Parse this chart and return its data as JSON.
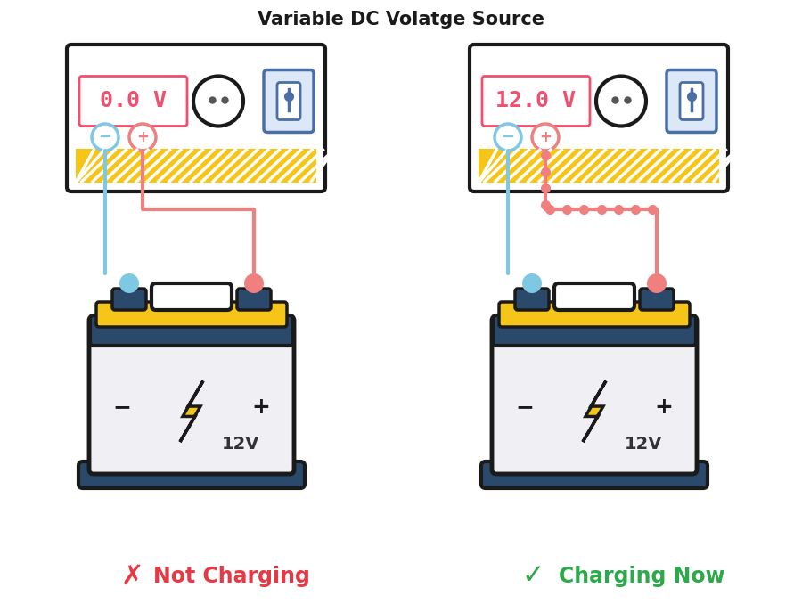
{
  "title": "Variable DC Volatge Source",
  "title_fontsize": 15,
  "title_fontweight": "bold",
  "background_color": "#ffffff",
  "left_voltage": "0.0 V",
  "right_voltage": "12.0 V",
  "voltage_color": "#f0506e",
  "label_not_charging": "Not Charging",
  "label_charging": "Charging Now",
  "not_charging_color": "#e63946",
  "charging_color": "#2da84a",
  "battery_label": "12V",
  "wire_blue": "#7ec8e3",
  "wire_red": "#f08080",
  "psu_border": "#1a1a1a",
  "psu_fill": "#ffffff",
  "psu_stripe_yellow": "#f5c518",
  "psu_stripe_white": "#ffffff",
  "battery_dark": "#2b4a6b",
  "battery_yellow": "#f5c518",
  "battery_body": "#f0f0f4",
  "battery_border": "#1a1a1a",
  "bolt_fill": "#f5c518",
  "bolt_border": "#1a1a1a",
  "switch_border": "#4a6fa5",
  "switch_fill": "#dce8f8",
  "meter_border": "#1a1a1a",
  "dot_color": "#f08080"
}
